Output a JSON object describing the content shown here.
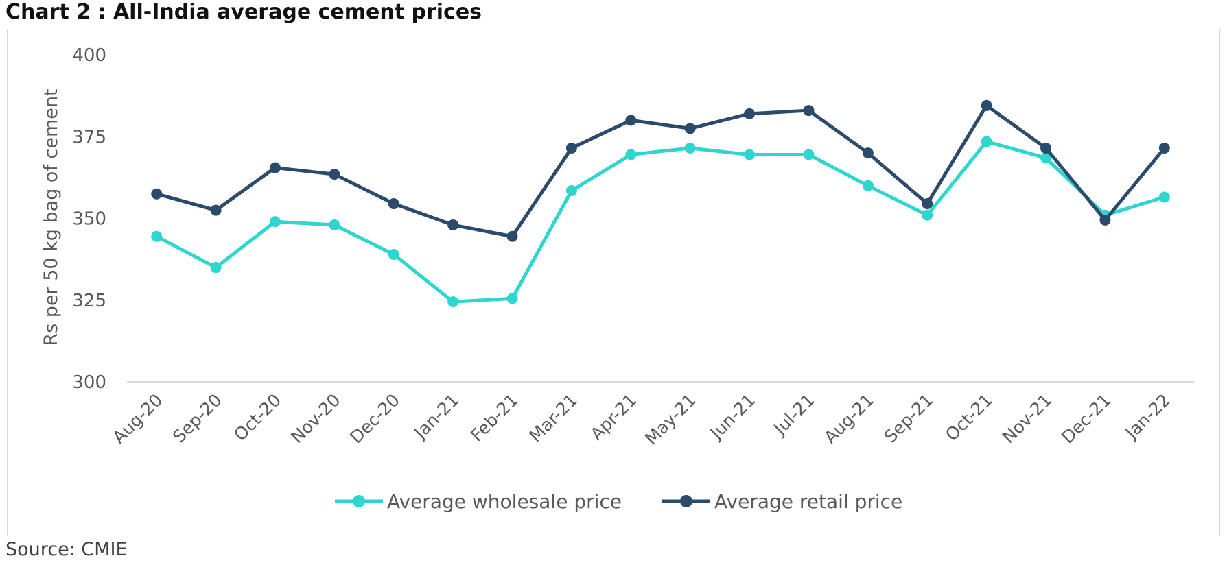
{
  "title": "Chart 2 : All-India average cement prices",
  "source": "Source: CMIE",
  "chart_data": {
    "type": "line",
    "title": "Chart 2 : All-India average cement prices",
    "xlabel": "",
    "ylabel": "Rs per 50 kg bag of cement",
    "ylim": [
      300,
      400
    ],
    "yticks": [
      300,
      325,
      350,
      375,
      400
    ],
    "grid": false,
    "legend_position": "bottom",
    "categories": [
      "Aug-20",
      "Sep-20",
      "Oct-20",
      "Nov-20",
      "Dec-20",
      "Jan-21",
      "Feb-21",
      "Mar-21",
      "Apr-21",
      "May-21",
      "Jun-21",
      "Jul-21",
      "Aug-21",
      "Sep-21",
      "Oct-21",
      "Nov-21",
      "Dec-21",
      "Jan-22"
    ],
    "series": [
      {
        "name": "Average wholesale price",
        "color": "#2ed6cf",
        "values": [
          344.5,
          335,
          349,
          348,
          339,
          324.5,
          325.5,
          358.5,
          369.5,
          371.5,
          369.5,
          369.5,
          360,
          351,
          373.5,
          368.5,
          351,
          356.5
        ]
      },
      {
        "name": "Average retail price",
        "color": "#2c4a6b",
        "values": [
          357.5,
          352.5,
          365.5,
          363.5,
          354.5,
          348,
          344.5,
          371.5,
          380,
          377.5,
          382,
          383,
          370,
          354.5,
          384.5,
          371.5,
          349.5,
          371.5
        ]
      }
    ]
  }
}
